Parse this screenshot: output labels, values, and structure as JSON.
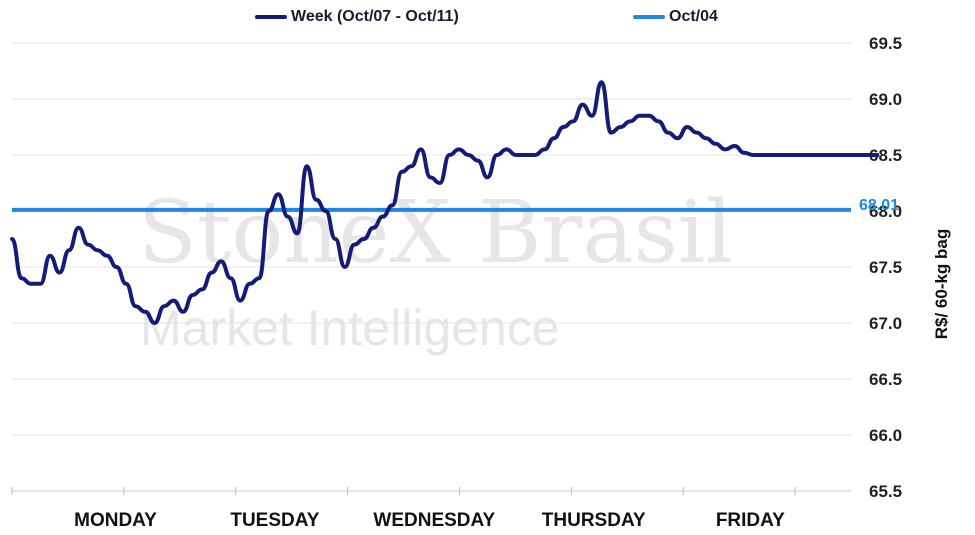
{
  "chart_data": {
    "type": "line",
    "ylabel": "R$/ 60-kg bag",
    "ylim": [
      65.5,
      69.5
    ],
    "y_ticks": [
      "65.5",
      "66.0",
      "66.5",
      "67.0",
      "67.5",
      "68.0",
      "68.5",
      "69.0",
      "69.5"
    ],
    "categories": [
      "MONDAY",
      "TUESDAY",
      "WEDNESDAY",
      "THURSDAY",
      "FRIDAY"
    ],
    "grid": true,
    "legend_position": "top",
    "series": [
      {
        "name": "Week (Oct/07 - Oct/11)",
        "color": "#141c78",
        "x": [
          0.0,
          0.05,
          0.1,
          0.15,
          0.2,
          0.25,
          0.3,
          0.35,
          0.4,
          0.45,
          0.5,
          0.55,
          0.6,
          0.65,
          0.7,
          0.75,
          0.8,
          0.85,
          0.9,
          0.95,
          1.0,
          1.05,
          1.1,
          1.15,
          1.2,
          1.25,
          1.3,
          1.35,
          1.4,
          1.45,
          1.5,
          1.55,
          1.6,
          1.65,
          1.7,
          1.75,
          1.8,
          1.85,
          1.9,
          1.95,
          2.0,
          2.05,
          2.1,
          2.15,
          2.2,
          2.25,
          2.3,
          2.35,
          2.4,
          2.45,
          2.5,
          2.55,
          2.6,
          2.65,
          2.7,
          2.75,
          2.8,
          2.85,
          2.9,
          2.95,
          3.0,
          3.05,
          3.1,
          3.15,
          3.2,
          3.25,
          3.3,
          3.35,
          3.4,
          3.45,
          3.5,
          3.55,
          3.6,
          3.65,
          3.7,
          3.75,
          3.8,
          3.85,
          3.9,
          3.95,
          4.0,
          4.05,
          4.1,
          4.15,
          4.2,
          4.25,
          4.3,
          4.35,
          4.4,
          4.45,
          4.5,
          4.55
        ],
        "values": [
          67.75,
          67.4,
          67.35,
          67.35,
          67.6,
          67.45,
          67.65,
          67.85,
          67.7,
          67.65,
          67.6,
          67.5,
          67.35,
          67.15,
          67.1,
          67.0,
          67.15,
          67.2,
          67.1,
          67.25,
          67.3,
          67.45,
          67.55,
          67.4,
          67.2,
          67.35,
          67.4,
          68.0,
          68.15,
          67.95,
          67.8,
          68.4,
          68.1,
          68.0,
          67.75,
          67.5,
          67.7,
          67.75,
          67.85,
          67.95,
          68.05,
          68.35,
          68.4,
          68.55,
          68.3,
          68.25,
          68.5,
          68.55,
          68.5,
          68.45,
          68.3,
          68.5,
          68.55,
          68.5,
          68.5,
          68.5,
          68.55,
          68.65,
          68.75,
          68.8,
          68.95,
          68.85,
          69.15,
          68.7,
          68.75,
          68.8,
          68.85,
          68.85,
          68.8,
          68.7,
          68.65,
          68.75,
          68.7,
          68.65,
          68.6,
          68.55,
          68.58,
          68.52,
          68.5,
          68.5,
          68.5,
          68.5,
          68.5,
          68.5,
          68.5,
          68.5,
          68.5,
          68.5,
          68.5,
          68.5,
          68.5,
          68.5
        ]
      },
      {
        "name": "Oct/04",
        "color": "#1e88e5",
        "value": 68.01,
        "label": "68.01"
      }
    ]
  },
  "watermark": {
    "line1": "StoneX Brasil",
    "line2": "Market Intelligence"
  }
}
